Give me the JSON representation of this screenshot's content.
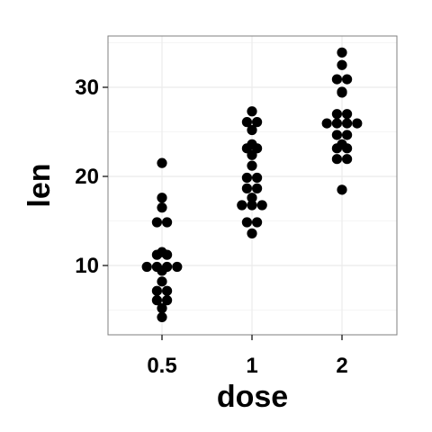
{
  "chart_data": {
    "type": "scatter",
    "subtype": "dotplot",
    "title": "",
    "xlabel": "dose",
    "ylabel": "len",
    "categories": [
      "0.5",
      "1",
      "2"
    ],
    "ylim": [
      2.5,
      36
    ],
    "y_ticks": [
      "10",
      "20",
      "30"
    ],
    "grid": true,
    "legend": "none",
    "series": [
      {
        "category": "0.5",
        "values": [
          4.2,
          5.2,
          5.8,
          6.4,
          7.0,
          7.3,
          8.2,
          9.4,
          9.7,
          9.7,
          10.0,
          10.0,
          11.2,
          11.2,
          11.5,
          14.5,
          15.2,
          16.5,
          17.6,
          21.5
        ]
      },
      {
        "category": "1",
        "values": [
          13.6,
          14.5,
          15.2,
          16.5,
          16.5,
          17.3,
          17.6,
          18.5,
          18.8,
          19.7,
          20.0,
          21.2,
          22.4,
          23.0,
          23.3,
          23.6,
          25.2,
          25.8,
          26.4,
          27.3
        ]
      },
      {
        "category": "2",
        "values": [
          18.5,
          21.5,
          22.4,
          23.0,
          23.3,
          23.6,
          24.5,
          24.8,
          25.5,
          25.5,
          26.4,
          26.4,
          26.7,
          27.3,
          29.4,
          29.5,
          30.9,
          32.5,
          33.9,
          30.9
        ]
      }
    ],
    "colors": {
      "dot": "#000000",
      "panel_border": "#7f7f7f",
      "grid_major": "#ebebeb",
      "grid_minor": "#f5f5f5"
    }
  }
}
